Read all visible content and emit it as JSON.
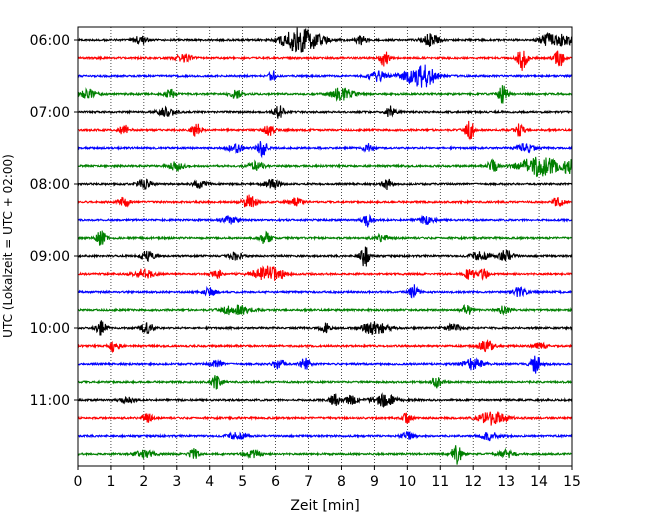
{
  "chart_data": {
    "type": "line",
    "title": "",
    "xlabel": "Zeit  [min]",
    "ylabel": "UTC (Lokalzeit = UTC + 02:00)",
    "xlim": [
      0,
      15
    ],
    "x_ticks": [
      "0",
      "1",
      "2",
      "3",
      "4",
      "5",
      "6",
      "7",
      "8",
      "9",
      "10",
      "11",
      "12",
      "13",
      "14",
      "15"
    ],
    "y_ticks": [
      {
        "label": "06:00",
        "row": 0
      },
      {
        "label": "07:00",
        "row": 4
      },
      {
        "label": "08:00",
        "row": 8
      },
      {
        "label": "09:00",
        "row": 12
      },
      {
        "label": "10:00",
        "row": 16
      },
      {
        "label": "11:00",
        "row": 20
      }
    ],
    "grid": {
      "vertical": true,
      "style": "dotted"
    },
    "colors": [
      "#000000",
      "#ff0000",
      "#0000ff",
      "#008000"
    ],
    "rows": [
      {
        "color": "#000000",
        "events": [
          [
            1.9,
            0.5,
            0.4
          ],
          [
            6.5,
            0.7,
            0.8
          ],
          [
            7.0,
            0.9,
            1.0
          ],
          [
            8.6,
            0.5,
            0.3
          ],
          [
            10.7,
            0.6,
            0.5
          ],
          [
            14.2,
            0.5,
            0.4
          ],
          [
            14.7,
            0.6,
            0.8
          ]
        ]
      },
      {
        "color": "#ff0000",
        "events": [
          [
            3.2,
            0.4,
            0.5
          ],
          [
            9.3,
            0.8,
            0.3
          ],
          [
            13.5,
            1.2,
            0.3
          ],
          [
            14.6,
            0.9,
            0.3
          ]
        ]
      },
      {
        "color": "#0000ff",
        "events": [
          [
            5.9,
            0.6,
            0.2
          ],
          [
            9.1,
            0.5,
            0.5
          ],
          [
            10.3,
            0.8,
            1.0
          ],
          [
            10.6,
            0.5,
            0.6
          ]
        ]
      },
      {
        "color": "#008000",
        "events": [
          [
            0.3,
            0.5,
            0.5
          ],
          [
            2.8,
            0.5,
            0.3
          ],
          [
            4.8,
            0.4,
            0.4
          ],
          [
            8.0,
            0.6,
            0.7
          ],
          [
            12.9,
            0.9,
            0.3
          ]
        ]
      },
      {
        "color": "#000000",
        "events": [
          [
            2.7,
            0.5,
            0.5
          ],
          [
            6.1,
            0.7,
            0.3
          ],
          [
            9.5,
            0.6,
            0.3
          ]
        ]
      },
      {
        "color": "#ff0000",
        "events": [
          [
            1.4,
            0.5,
            0.3
          ],
          [
            3.6,
            0.7,
            0.3
          ],
          [
            5.8,
            0.6,
            0.3
          ],
          [
            11.9,
            1.0,
            0.3
          ],
          [
            13.4,
            0.6,
            0.3
          ]
        ]
      },
      {
        "color": "#0000ff",
        "events": [
          [
            4.8,
            0.4,
            0.5
          ],
          [
            5.6,
            0.8,
            0.3
          ],
          [
            8.8,
            0.4,
            0.3
          ],
          [
            13.6,
            0.5,
            0.5
          ]
        ]
      },
      {
        "color": "#008000",
        "events": [
          [
            3.0,
            0.5,
            0.4
          ],
          [
            5.4,
            0.4,
            0.5
          ],
          [
            12.6,
            0.7,
            0.3
          ],
          [
            14.0,
            1.0,
            1.2
          ],
          [
            14.9,
            0.7,
            0.3
          ]
        ]
      },
      {
        "color": "#000000",
        "events": [
          [
            2.0,
            0.5,
            0.4
          ],
          [
            3.7,
            0.4,
            0.4
          ],
          [
            5.9,
            0.4,
            0.5
          ],
          [
            9.4,
            0.6,
            0.3
          ]
        ]
      },
      {
        "color": "#ff0000",
        "events": [
          [
            1.4,
            0.6,
            0.3
          ],
          [
            5.2,
            0.7,
            0.4
          ],
          [
            6.6,
            0.4,
            0.4
          ],
          [
            14.6,
            0.6,
            0.3
          ]
        ]
      },
      {
        "color": "#0000ff",
        "events": [
          [
            4.6,
            0.4,
            0.5
          ],
          [
            8.8,
            0.7,
            0.3
          ],
          [
            10.6,
            0.4,
            0.5
          ]
        ]
      },
      {
        "color": "#008000",
        "events": [
          [
            0.7,
            0.7,
            0.3
          ],
          [
            5.7,
            0.7,
            0.3
          ],
          [
            9.2,
            0.3,
            0.5
          ]
        ]
      },
      {
        "color": "#000000",
        "events": [
          [
            2.1,
            0.5,
            0.4
          ],
          [
            4.8,
            0.4,
            0.4
          ],
          [
            8.7,
            1.1,
            0.3
          ],
          [
            12.2,
            0.5,
            0.5
          ],
          [
            13.0,
            0.6,
            0.4
          ]
        ]
      },
      {
        "color": "#ff0000",
        "events": [
          [
            2.0,
            0.5,
            0.6
          ],
          [
            4.2,
            0.5,
            0.3
          ],
          [
            5.8,
            0.8,
            0.9
          ],
          [
            11.9,
            0.6,
            0.3
          ],
          [
            12.3,
            0.6,
            0.3
          ]
        ]
      },
      {
        "color": "#0000ff",
        "events": [
          [
            4.0,
            0.4,
            0.4
          ],
          [
            10.2,
            0.7,
            0.3
          ],
          [
            13.4,
            0.5,
            0.4
          ]
        ]
      },
      {
        "color": "#008000",
        "events": [
          [
            4.8,
            0.6,
            0.8
          ],
          [
            11.8,
            0.6,
            0.3
          ],
          [
            12.9,
            0.4,
            0.4
          ]
        ]
      },
      {
        "color": "#000000",
        "events": [
          [
            0.7,
            0.8,
            0.3
          ],
          [
            2.1,
            0.6,
            0.4
          ],
          [
            7.5,
            0.5,
            0.3
          ],
          [
            9.0,
            0.6,
            0.8
          ],
          [
            11.4,
            0.4,
            0.5
          ]
        ]
      },
      {
        "color": "#ff0000",
        "events": [
          [
            1.1,
            0.6,
            0.3
          ],
          [
            12.4,
            0.5,
            0.5
          ],
          [
            14.0,
            0.4,
            0.4
          ]
        ]
      },
      {
        "color": "#0000ff",
        "events": [
          [
            4.2,
            0.4,
            0.4
          ],
          [
            6.1,
            0.7,
            0.3
          ],
          [
            6.9,
            0.6,
            0.3
          ],
          [
            12.0,
            0.6,
            0.6
          ],
          [
            13.9,
            0.9,
            0.3
          ]
        ]
      },
      {
        "color": "#008000",
        "events": [
          [
            4.2,
            0.7,
            0.3
          ],
          [
            10.9,
            0.6,
            0.3
          ]
        ]
      },
      {
        "color": "#000000",
        "events": [
          [
            1.5,
            0.4,
            0.4
          ],
          [
            7.8,
            0.6,
            0.3
          ],
          [
            8.3,
            0.4,
            0.4
          ],
          [
            9.3,
            0.6,
            0.7
          ]
        ]
      },
      {
        "color": "#ff0000",
        "events": [
          [
            2.1,
            0.5,
            0.3
          ],
          [
            10.0,
            0.5,
            0.3
          ],
          [
            12.6,
            0.7,
            0.8
          ]
        ]
      },
      {
        "color": "#0000ff",
        "events": [
          [
            4.8,
            0.4,
            0.5
          ],
          [
            10.0,
            0.4,
            0.4
          ],
          [
            12.5,
            0.4,
            0.6
          ]
        ]
      },
      {
        "color": "#008000",
        "events": [
          [
            2.0,
            0.4,
            0.6
          ],
          [
            3.5,
            0.6,
            0.3
          ],
          [
            5.3,
            0.4,
            0.5
          ],
          [
            11.5,
            1.0,
            0.3
          ],
          [
            13.0,
            0.4,
            0.5
          ]
        ]
      }
    ]
  }
}
